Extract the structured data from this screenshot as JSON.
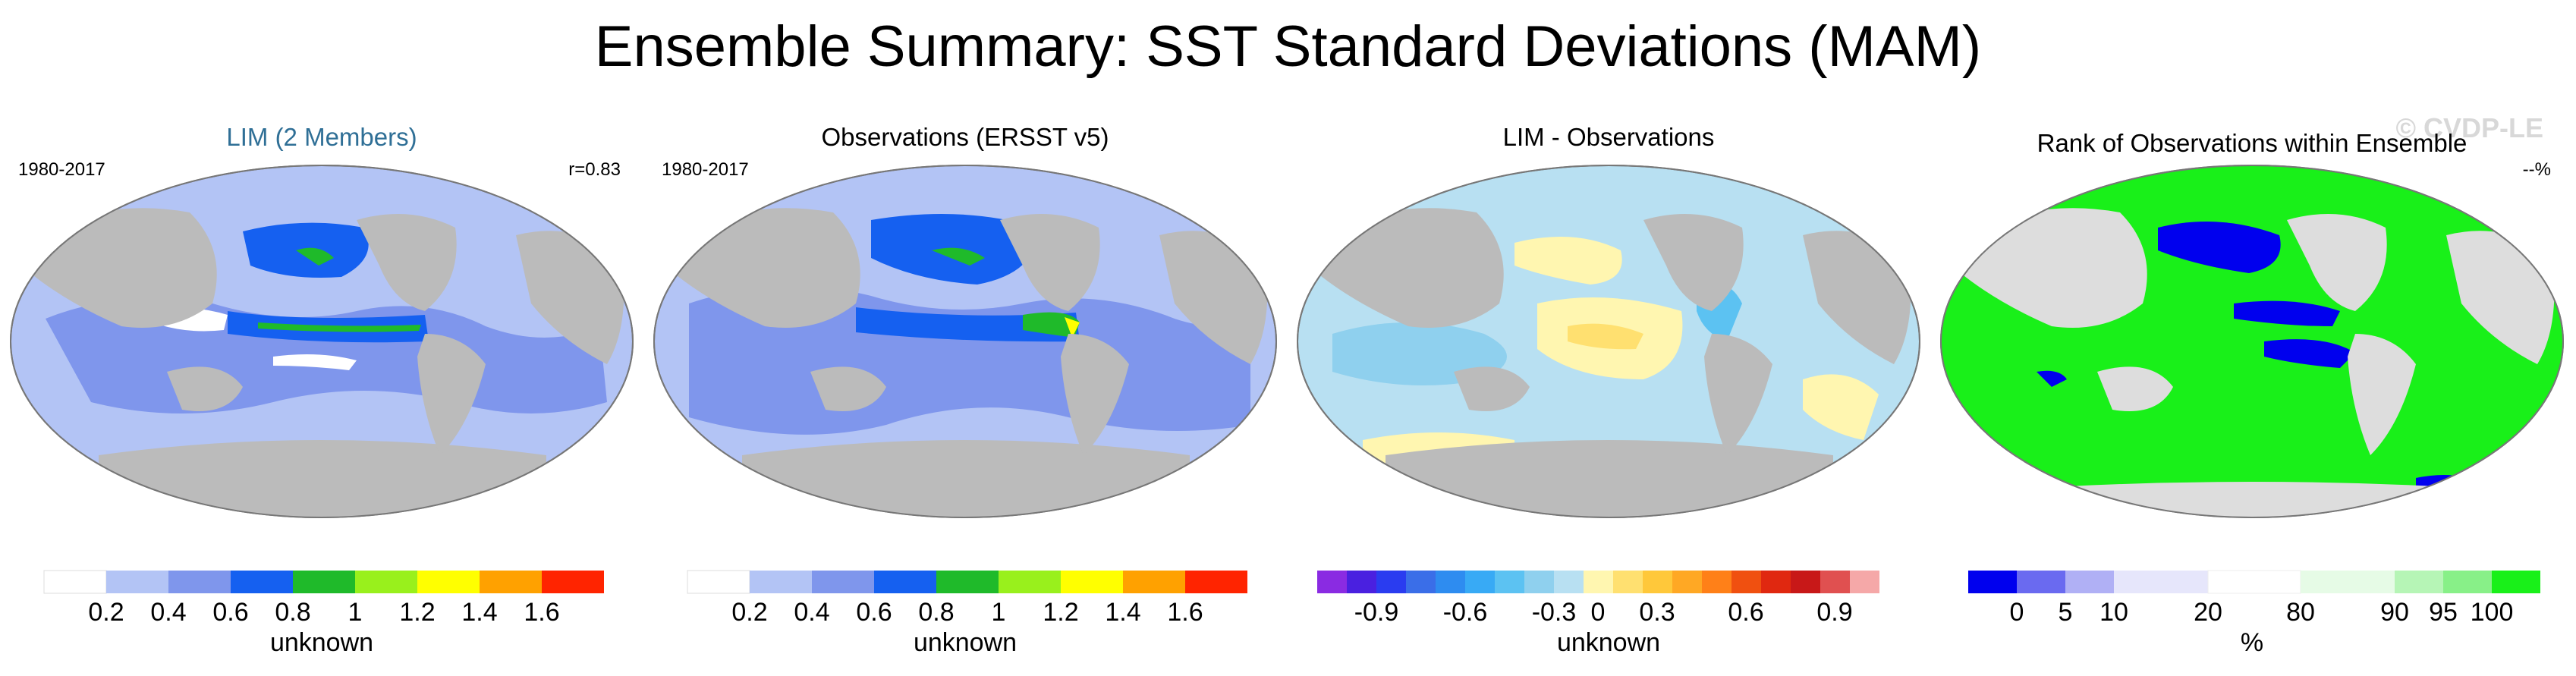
{
  "title": "Ensemble Summary: SST Standard Deviations (MAM)",
  "watermark": "© CVDP-LE",
  "panels": [
    {
      "title": "LIM (2 Members)",
      "period": "1980-2017",
      "stat": "r=0.83",
      "colorbar": {
        "colors": [
          "#ffffff",
          "#b3c4f5",
          "#7f96ec",
          "#1560f0",
          "#1fba2a",
          "#99f01c",
          "#ffff00",
          "#ffa100",
          "#ff2400"
        ],
        "ticks": [
          "0.2",
          "0.4",
          "0.6",
          "0.8",
          "1",
          "1.2",
          "1.4",
          "1.6"
        ],
        "unit": "unknown"
      }
    },
    {
      "title": "Observations (ERSST v5)",
      "period": "1980-2017",
      "stat": "",
      "colorbar": {
        "colors": [
          "#ffffff",
          "#b3c4f5",
          "#7f96ec",
          "#1560f0",
          "#1fba2a",
          "#99f01c",
          "#ffff00",
          "#ffa100",
          "#ff2400"
        ],
        "ticks": [
          "0.2",
          "0.4",
          "0.6",
          "0.8",
          "1",
          "1.2",
          "1.4",
          "1.6"
        ],
        "unit": "unknown"
      }
    },
    {
      "title": "LIM - Observations",
      "period": "",
      "stat": "",
      "colorbar": {
        "colors": [
          "#8a2be2",
          "#4a20e0",
          "#2a3cf0",
          "#3a6ee8",
          "#2e8cf0",
          "#38aaf5",
          "#5cc2f2",
          "#8fd0ee",
          "#b8e0f2",
          "#fff6b0",
          "#ffe070",
          "#ffc83a",
          "#ffa824",
          "#ff8018",
          "#f05010",
          "#e02810",
          "#c81818",
          "#e05050",
          "#f5a8a8"
        ],
        "ticks": [
          "-0.9",
          "-0.6",
          "-0.3",
          "0",
          "0.3",
          "0.6",
          "0.9"
        ],
        "unit": "unknown"
      }
    },
    {
      "title": "Rank of Observations within Ensemble",
      "period": "",
      "stat": "--%",
      "colorbar": {
        "colors": [
          "#0000ee",
          "#6a6af0",
          "#b0b0f5",
          "#e6e6fb",
          "#ffffff",
          "#e6fbe6",
          "#b6f5b6",
          "#88f088",
          "#19f019"
        ],
        "ticks": [
          "0",
          "5",
          "10",
          "20",
          "80",
          "90",
          "95",
          "100"
        ],
        "unit": "%"
      }
    }
  ]
}
